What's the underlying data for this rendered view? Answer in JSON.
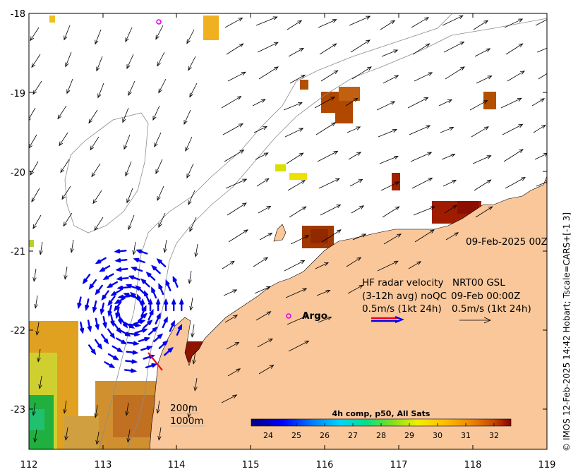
{
  "map": {
    "axes": {
      "lon_ticks": [
        "112",
        "113",
        "114",
        "115",
        "116",
        "117",
        "118",
        "119"
      ],
      "lat_ticks": [
        "-18",
        "-19",
        "-20",
        "-21",
        "-22",
        "-23"
      ],
      "lon_range": [
        112,
        119
      ],
      "lat_range": [
        -23.5,
        -18
      ]
    },
    "date_label": "09-Feb-2025 00Z",
    "legend": {
      "hf_title": "HF radar velocity",
      "hf_avg": "(3-12h avg) noQC",
      "hf_scale": "0.5m/s (1kt 24h)",
      "nrt_title": "NRT00 GSL",
      "nrt_date": "09-Feb 00:00Z",
      "nrt_scale": "0.5m/s (1kt 24h)",
      "argo_label": "Argo"
    },
    "bathymetry": {
      "contour_200": "200m",
      "contour_1000": "1000m"
    },
    "colorbar": {
      "title": "4h comp, p50, All Sats",
      "ticks": [
        "24",
        "25",
        "26",
        "27",
        "28",
        "29",
        "30",
        "31",
        "32"
      ],
      "range": [
        23.4,
        32.6
      ]
    },
    "credit": "© IMOS 12-Feb-2025 14:42 Hobart; Tscale=CARS+[-1 3]",
    "colors": {
      "land": "#f9c79a",
      "hf_arrows": "#0000ee",
      "argo": "#e800e8",
      "ref_red": "#e8001c",
      "contour": "#8c8c8c"
    }
  }
}
